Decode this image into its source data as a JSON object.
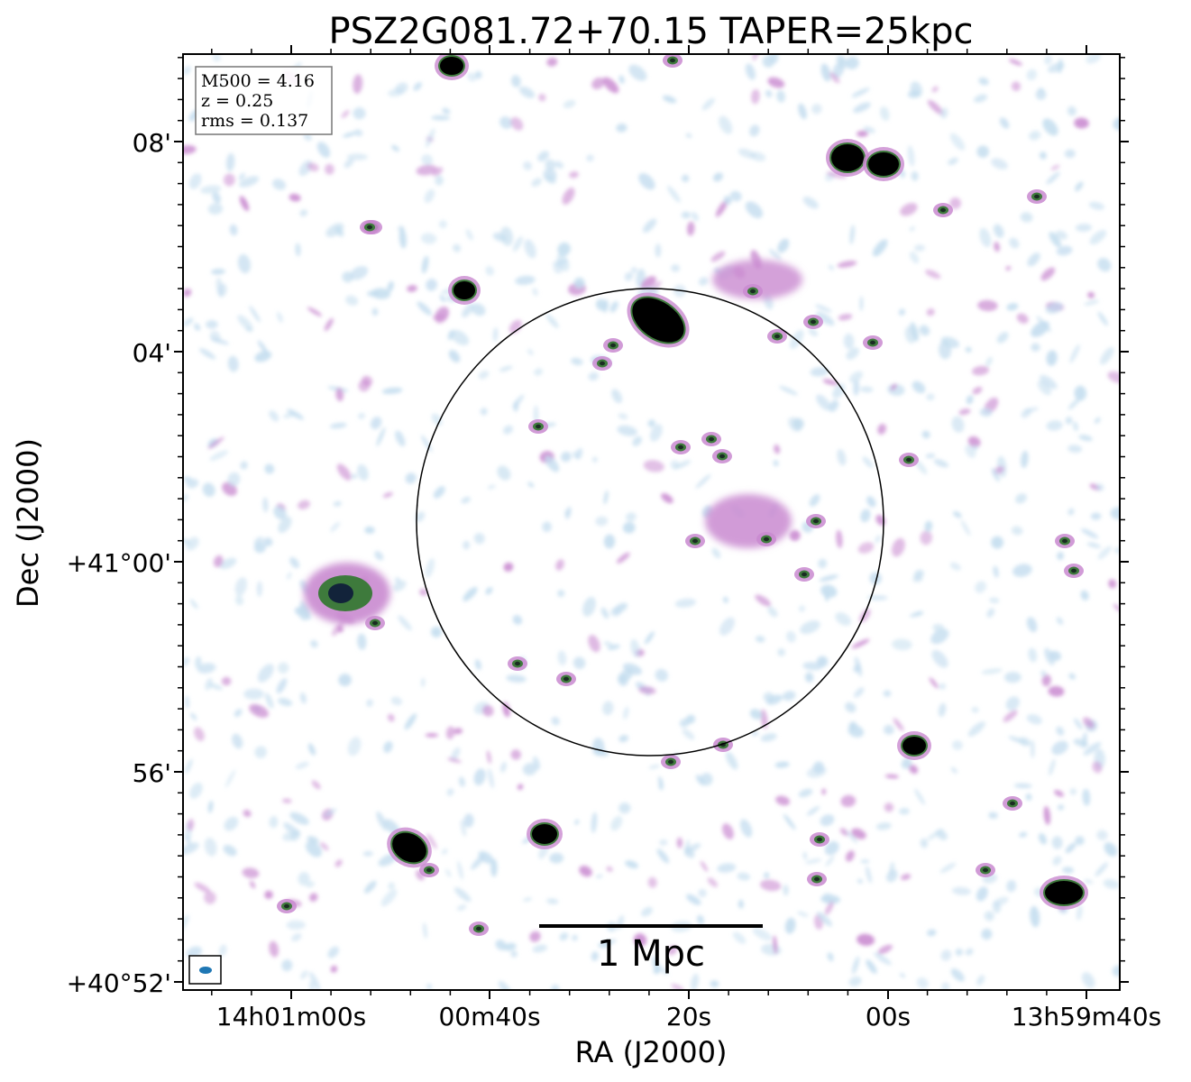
{
  "figure": {
    "title": "PSZ2G081.72+70.15 TAPER=25kpc",
    "info_box": {
      "line1": "M500 = 4.16",
      "line2": "z = 0.25",
      "line3": "rms = 0.137"
    },
    "scale_bar_label": "1 Mpc",
    "x_axis": {
      "label": "RA (J2000)",
      "ticks": [
        "14h01m00s",
        "00m40s",
        "20s",
        "00s",
        "13h59m40s"
      ]
    },
    "y_axis": {
      "label": "Dec (J2000)",
      "ticks": [
        "08'",
        "04'",
        "+41°00'",
        "56'",
        "+40°52'"
      ]
    },
    "colors": {
      "faint_emission": "#c4ddef",
      "mid_emission": "#c98ad0",
      "bright_emission": "#3e7a3c",
      "core": "#000000",
      "beam": "#1f77b4"
    }
  }
}
